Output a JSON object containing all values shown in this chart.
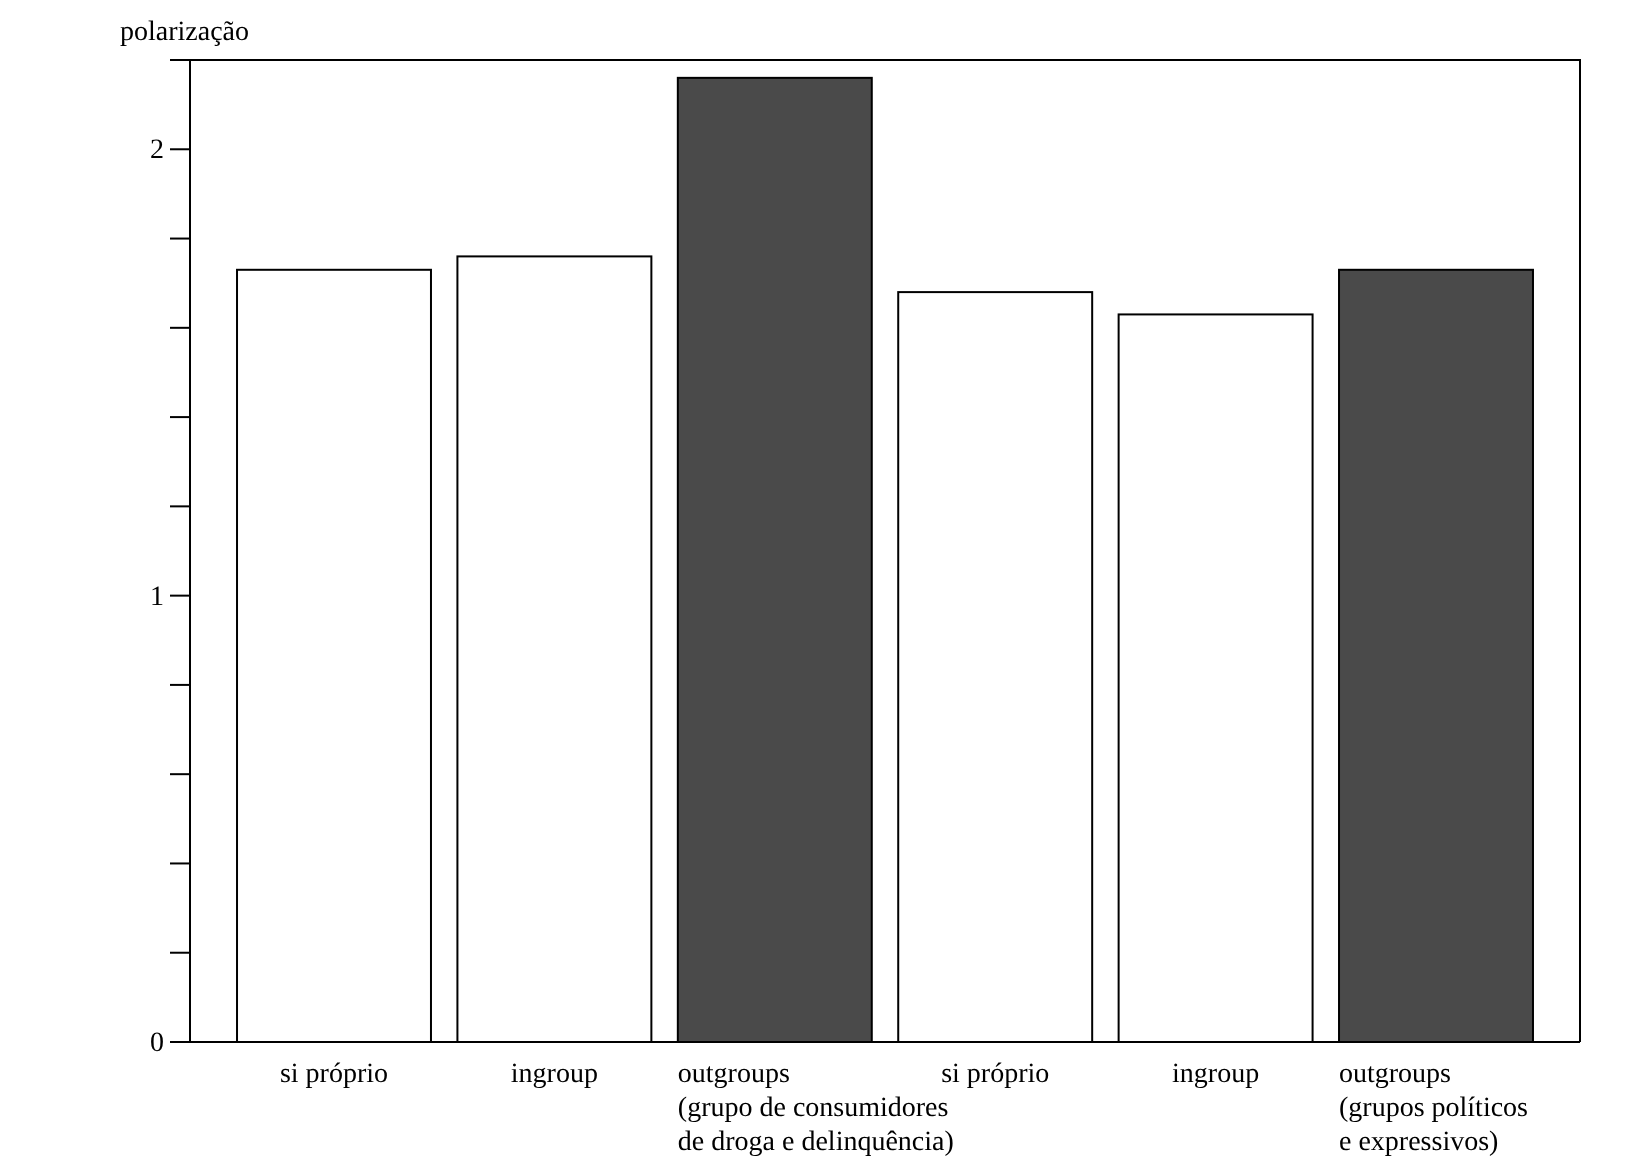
{
  "chart_data": {
    "type": "bar",
    "ylabel": "polarização",
    "categories": [
      "si próprio",
      "ingroup",
      "outgroups\n(grupo de consumidores\nde droga e delinquência)",
      "si próprio",
      "ingroup",
      "outgroups\n(grupos políticos\ne expressivos)"
    ],
    "values": [
      1.73,
      1.76,
      2.16,
      1.68,
      1.63,
      1.73
    ],
    "colors": [
      "#ffffff",
      "#ffffff",
      "#4a4a4a",
      "#ffffff",
      "#ffffff",
      "#4a4a4a"
    ],
    "ylim": [
      0,
      2.2
    ],
    "yticks": [
      0,
      {
        "value": 0.2,
        "label": null
      },
      {
        "value": 0.4,
        "label": null
      },
      {
        "value": 0.6,
        "label": null
      },
      {
        "value": 0.8,
        "label": null
      },
      1,
      {
        "value": 1.2,
        "label": null
      },
      {
        "value": 1.4,
        "label": null
      },
      {
        "value": 1.6,
        "label": null
      },
      {
        "value": 1.8,
        "label": null
      },
      2
    ],
    "grid": false
  }
}
